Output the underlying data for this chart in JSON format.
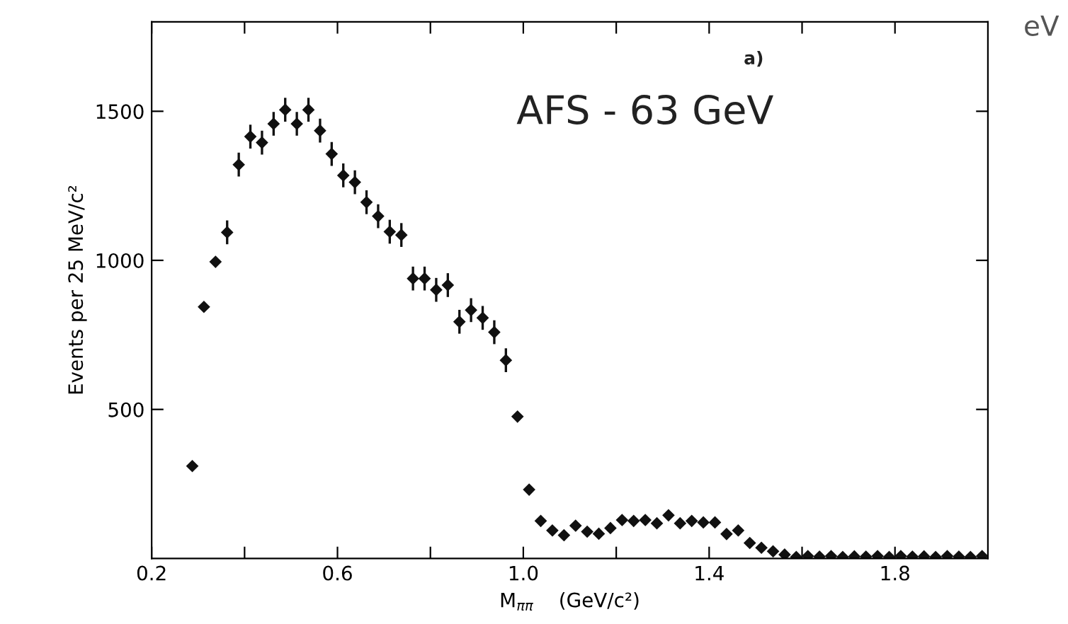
{
  "chart_data": {
    "type": "scatter",
    "xlabel": "M$_{ππ}$    (GeV/c²)",
    "ylabel": "Events per 25 MeV/c²",
    "annotations": [
      "a)",
      "AFS - 63 GeV",
      "eV"
    ],
    "xlim": [
      0.2,
      2.0
    ],
    "ylim": [
      0,
      1800
    ],
    "xticks": [
      0.2,
      {
        "value": 0.4,
        "label": null
      },
      0.6,
      {
        "value": 0.8,
        "label": null
      },
      {
        "value": 1.0,
        "label": "1.0"
      },
      {
        "value": 1.2,
        "label": null
      },
      1.4,
      {
        "value": 1.6,
        "label": null
      },
      1.8
    ],
    "yticks": [
      500,
      1000,
      1500
    ],
    "grid": false,
    "legend": false,
    "marker": "diamond",
    "color": "#111111",
    "x": [
      0.2875,
      0.3125,
      0.3375,
      0.3625,
      0.3875,
      0.4125,
      0.4375,
      0.4625,
      0.4875,
      0.5125,
      0.5375,
      0.5625,
      0.5875,
      0.6125,
      0.6375,
      0.6625,
      0.6875,
      0.7125,
      0.7375,
      0.7625,
      0.7875,
      0.8125,
      0.8375,
      0.8625,
      0.8875,
      0.9125,
      0.9375,
      0.9625,
      0.9875,
      1.0125,
      1.0375,
      1.0625,
      1.0875,
      1.1125,
      1.1375,
      1.1625,
      1.1875,
      1.2125,
      1.2375,
      1.2625,
      1.2875,
      1.3125,
      1.3375,
      1.3625,
      1.3875,
      1.4125,
      1.4375,
      1.4625,
      1.4875,
      1.5125,
      1.5375,
      1.5625,
      1.5875,
      1.6125,
      1.6375,
      1.6625,
      1.6875,
      1.7125,
      1.7375,
      1.7625,
      1.7875,
      1.8125,
      1.8375,
      1.8625,
      1.8875,
      1.9125,
      1.9375,
      1.9625,
      1.9875
    ],
    "values": [
      310,
      844,
      995,
      1094,
      1321,
      1415,
      1395,
      1458,
      1505,
      1458,
      1505,
      1435,
      1357,
      1285,
      1262,
      1195,
      1148,
      1096,
      1085,
      939,
      939,
      901,
      917,
      794,
      833,
      807,
      759,
      665,
      476,
      231,
      126,
      94,
      78,
      110,
      90,
      83,
      102,
      129,
      126,
      129,
      118,
      145,
      118,
      126,
      121,
      121,
      82,
      94,
      52,
      36,
      24,
      13,
      5,
      8,
      6,
      8,
      5,
      7,
      6,
      8,
      5,
      8,
      6,
      7,
      5,
      8,
      6,
      5,
      8
    ],
    "errors": [
      null,
      null,
      null,
      40,
      40,
      40,
      40,
      40,
      40,
      40,
      40,
      40,
      40,
      40,
      40,
      40,
      40,
      40,
      40,
      40,
      40,
      40,
      40,
      40,
      40,
      40,
      40,
      40,
      null,
      null,
      null,
      null,
      null,
      null,
      null,
      null,
      null,
      null,
      null,
      null,
      null,
      null,
      null,
      null,
      null,
      null,
      null,
      null,
      null,
      null,
      null,
      null,
      null,
      null,
      null,
      null,
      null,
      null,
      null,
      null,
      null,
      null,
      null,
      null,
      null,
      null,
      null,
      null,
      null
    ]
  }
}
